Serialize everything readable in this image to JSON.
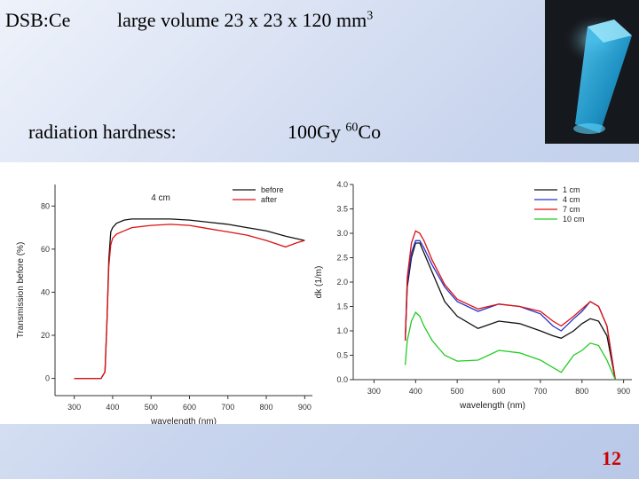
{
  "header": {
    "material": "DSB:Ce",
    "volume_text": "large volume  23 x 23 x 120 mm",
    "volume_exponent": "3",
    "subtitle": "radiation hardness:",
    "dose": "100Gy  ",
    "isotope_mass": "60",
    "isotope": "Co"
  },
  "photo": {
    "description_icon": "crystal-photo-icon",
    "glow_color": "#39c6ff"
  },
  "page_number": "12",
  "chart_data": [
    {
      "type": "line",
      "annotation": "4 cm",
      "xlabel": "wavelength (nm)",
      "ylabel": "Transmission before (%)",
      "xlim": [
        250,
        920
      ],
      "ylim": [
        -8,
        90
      ],
      "xticks": [
        300,
        400,
        500,
        600,
        700,
        800,
        900
      ],
      "yticks": [
        0,
        20,
        40,
        60,
        80
      ],
      "legend_position": "top-right",
      "series": [
        {
          "name": "before",
          "color": "#111111",
          "x": [
            300,
            370,
            380,
            385,
            390,
            395,
            400,
            410,
            430,
            450,
            500,
            550,
            600,
            650,
            700,
            750,
            800,
            850,
            900
          ],
          "y": [
            0,
            0,
            3,
            25,
            55,
            68,
            70,
            72,
            73.5,
            74,
            74,
            74,
            73.5,
            72.5,
            71.5,
            70,
            68.5,
            66,
            64
          ]
        },
        {
          "name": "after",
          "color": "#dd1111",
          "x": [
            300,
            370,
            380,
            385,
            390,
            395,
            400,
            410,
            430,
            450,
            500,
            550,
            600,
            650,
            700,
            750,
            800,
            850,
            880,
            900
          ],
          "y": [
            0,
            0,
            3,
            25,
            52,
            62,
            65,
            67,
            68.5,
            70,
            71,
            71.5,
            71,
            69.5,
            68,
            66.5,
            64,
            61,
            63,
            64
          ]
        }
      ]
    },
    {
      "type": "line",
      "xlabel": "wavelength (nm)",
      "ylabel": "dk (1/m)",
      "xlim": [
        250,
        920
      ],
      "ylim": [
        0,
        4.0
      ],
      "xticks": [
        300,
        400,
        500,
        600,
        700,
        800,
        900
      ],
      "yticks": [
        0.0,
        0.5,
        1.0,
        1.5,
        2.0,
        2.5,
        3.0,
        3.5,
        4.0
      ],
      "legend_position": "top-right",
      "series": [
        {
          "name": "1 cm",
          "color": "#111111",
          "x": [
            375,
            380,
            390,
            400,
            410,
            420,
            440,
            470,
            500,
            550,
            600,
            650,
            700,
            730,
            750,
            780,
            800,
            820,
            840,
            860,
            880
          ],
          "y": [
            0.8,
            1.9,
            2.5,
            2.8,
            2.8,
            2.6,
            2.2,
            1.6,
            1.3,
            1.05,
            1.2,
            1.15,
            1.0,
            0.9,
            0.85,
            1.0,
            1.15,
            1.25,
            1.2,
            0.9,
            0.0
          ]
        },
        {
          "name": "4 cm",
          "color": "#2233cc",
          "x": [
            375,
            380,
            390,
            400,
            410,
            420,
            440,
            470,
            500,
            550,
            600,
            650,
            700,
            730,
            750,
            780,
            800,
            820,
            840,
            860,
            880
          ],
          "y": [
            0.8,
            2.0,
            2.6,
            2.85,
            2.85,
            2.7,
            2.35,
            1.9,
            1.6,
            1.4,
            1.55,
            1.5,
            1.35,
            1.1,
            1.0,
            1.25,
            1.4,
            1.6,
            1.5,
            1.1,
            0.0
          ]
        },
        {
          "name": "7 cm",
          "color": "#dd1111",
          "x": [
            375,
            380,
            390,
            400,
            410,
            420,
            440,
            470,
            500,
            550,
            600,
            650,
            700,
            730,
            750,
            780,
            800,
            820,
            840,
            860,
            880
          ],
          "y": [
            0.8,
            2.1,
            2.8,
            3.05,
            3.0,
            2.85,
            2.45,
            1.95,
            1.65,
            1.45,
            1.55,
            1.5,
            1.4,
            1.2,
            1.1,
            1.3,
            1.45,
            1.6,
            1.5,
            1.1,
            0.0
          ]
        },
        {
          "name": "10 cm",
          "color": "#22cc22",
          "x": [
            375,
            380,
            390,
            400,
            410,
            420,
            440,
            470,
            500,
            550,
            600,
            650,
            700,
            730,
            750,
            780,
            800,
            820,
            840,
            860,
            880
          ],
          "y": [
            0.3,
            0.8,
            1.2,
            1.38,
            1.3,
            1.1,
            0.8,
            0.5,
            0.38,
            0.4,
            0.6,
            0.55,
            0.4,
            0.25,
            0.15,
            0.5,
            0.6,
            0.75,
            0.7,
            0.4,
            0.0
          ]
        }
      ]
    }
  ]
}
